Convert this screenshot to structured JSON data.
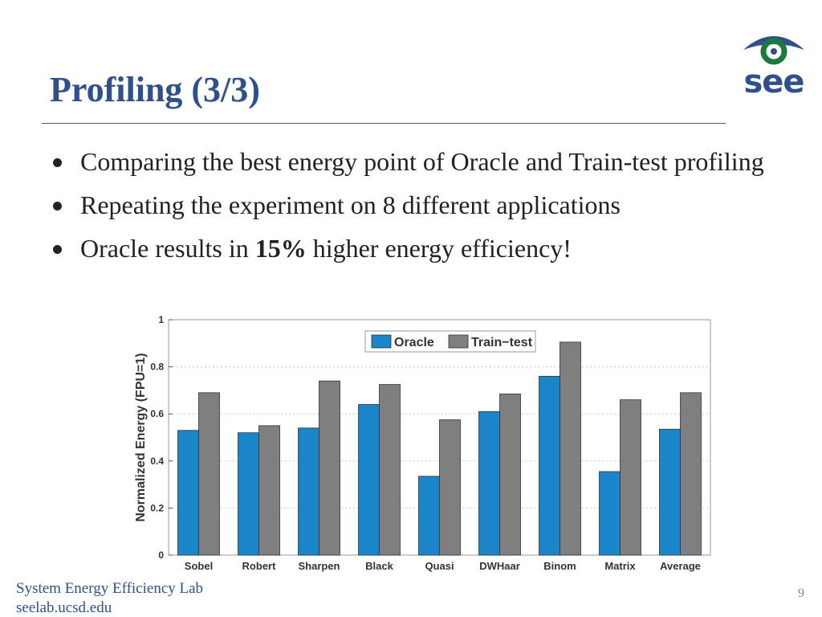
{
  "slide": {
    "title": "Profiling (3/3)",
    "bullets": [
      {
        "text": "Comparing the best energy point of Oracle and Train-test profiling"
      },
      {
        "text": "Repeating the experiment on 8 different applications"
      },
      {
        "text_before": "Oracle results in ",
        "highlight": "15%",
        "text_after": " higher energy efficiency!"
      }
    ],
    "logo_text": "see",
    "footer_lab": "System Energy Efficiency Lab",
    "footer_url": "seelab.ucsd.edu",
    "page_number": "9"
  },
  "colors": {
    "title": "#2f4f8f",
    "oracle": "#1a86c9",
    "train_test": "#7f7f7f",
    "logo_green": "#1c7a3c",
    "logo_blue": "#2f4f8f"
  },
  "chart_data": {
    "type": "bar",
    "title": "",
    "xlabel": "",
    "ylabel": "Normalized Energy (FPU=1)",
    "ylim": [
      0,
      1
    ],
    "yticks": [
      "0",
      "0.2",
      "0.4",
      "0.6",
      "0.8",
      "1"
    ],
    "grid": true,
    "legend_position": "top-center",
    "categories": [
      "Sobel",
      "Robert",
      "Sharpen",
      "Black",
      "Quasi",
      "DWHaar",
      "Binom",
      "Matrix",
      "Average"
    ],
    "series": [
      {
        "name": "Oracle",
        "values": [
          0.53,
          0.52,
          0.54,
          0.64,
          0.335,
          0.61,
          0.76,
          0.355,
          0.535
        ]
      },
      {
        "name": "Train−test",
        "values": [
          0.69,
          0.55,
          0.74,
          0.725,
          0.575,
          0.685,
          0.905,
          0.66,
          0.69
        ]
      }
    ]
  }
}
